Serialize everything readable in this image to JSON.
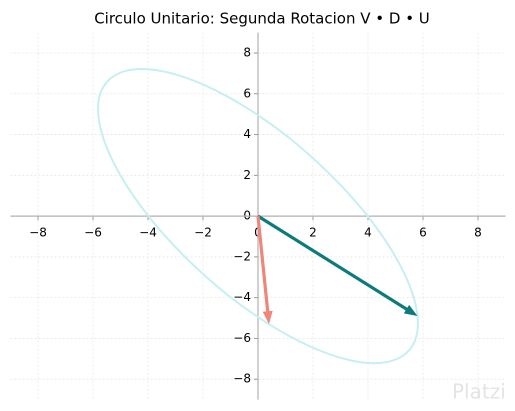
{
  "chart_data": {
    "type": "line",
    "title": "Circulo Unitario: Segunda Rotacion V • D • U",
    "xlim": [
      -9,
      9
    ],
    "ylim": [
      -9,
      9
    ],
    "xticks": [
      {
        "value": -8,
        "label": "−8"
      },
      {
        "value": -6,
        "label": "−6"
      },
      {
        "value": -4,
        "label": "−4"
      },
      {
        "value": -2,
        "label": "−2"
      },
      0,
      2,
      4,
      6,
      8
    ],
    "yticks": [
      {
        "value": -8,
        "label": "−8"
      },
      {
        "value": -6,
        "label": "−6"
      },
      {
        "value": -4,
        "label": "−4"
      },
      {
        "value": -2,
        "label": "−2"
      },
      0,
      2,
      4,
      6,
      8
    ],
    "grid": true,
    "series": [
      {
        "style": "closed-curve",
        "color": "#c6eff0",
        "x": [
          5.8,
          5.71,
          5.22,
          4.38,
          3.25,
          1.89,
          0.4,
          -1.12,
          -2.55,
          -3.82,
          -4.82,
          -5.5,
          -5.8,
          -5.71,
          -5.22,
          -4.38,
          -3.25,
          -1.89,
          -0.4,
          1.12,
          2.55,
          3.82,
          4.82,
          5.5
        ],
        "y": [
          -4.9,
          -6.1,
          -6.89,
          -7.21,
          -7.04,
          -6.39,
          -5.3,
          -3.85,
          -2.14,
          -0.28,
          1.59,
          3.36,
          4.9,
          6.1,
          6.89,
          7.21,
          7.04,
          6.39,
          5.3,
          3.85,
          2.14,
          0.28,
          -1.59,
          -3.36
        ]
      },
      {
        "style": "arrow",
        "color": "#0b7b7b",
        "x": [
          0,
          5.8
        ],
        "y": [
          0,
          -4.9
        ]
      },
      {
        "style": "arrow",
        "color": "#f0857a",
        "x": [
          0,
          0.4
        ],
        "y": [
          0,
          -5.3
        ]
      }
    ],
    "watermark": "Platzi"
  }
}
